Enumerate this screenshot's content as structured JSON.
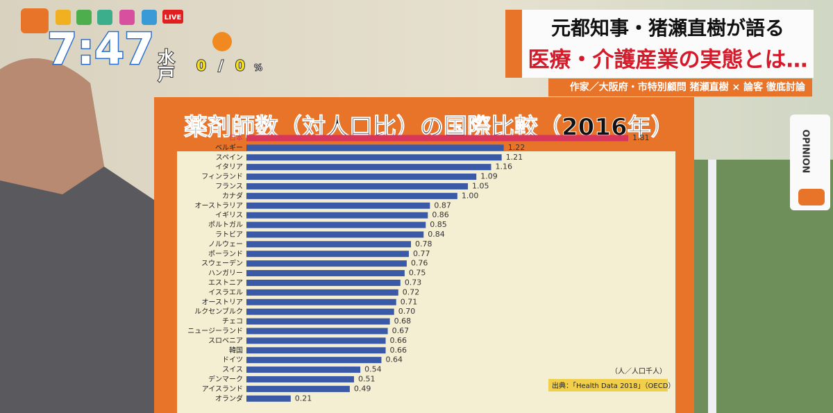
{
  "chart_data": {
    "type": "barh",
    "title": "薬剤師数（対人口比）の国際比較（2016年）",
    "unit_note": "（人／人口千人）",
    "source": "出典：「Health Data 2018」（OECD）",
    "categories": [
      "日本",
      "ベルギー",
      "スペイン",
      "イタリア",
      "フィンランド",
      "フランス",
      "カナダ",
      "オーストラリア",
      "イギリス",
      "ポルトガル",
      "ラトビア",
      "ノルウェー",
      "ポーランド",
      "スウェーデン",
      "ハンガリー",
      "エストニア",
      "イスラエル",
      "オーストリア",
      "ルクセンブルク",
      "チェコ",
      "ニュージーランド",
      "スロベニア",
      "韓国",
      "ドイツ",
      "スイス",
      "デンマーク",
      "アイスランド",
      "オランダ"
    ],
    "values": [
      1.81,
      1.22,
      1.21,
      1.16,
      1.09,
      1.05,
      1.0,
      0.87,
      0.86,
      0.85,
      0.84,
      0.78,
      0.77,
      0.76,
      0.75,
      0.73,
      0.72,
      0.71,
      0.7,
      0.68,
      0.67,
      0.66,
      0.66,
      0.64,
      0.54,
      0.51,
      0.49,
      0.21
    ],
    "value_labels": [
      "1.81",
      "1.22",
      "1.21",
      "1.16",
      "1.09",
      "1.05",
      "1.00",
      "0.87",
      "0.86",
      "0.85",
      "0.84",
      "0.78",
      "0.77",
      "0.76",
      "0.75",
      "0.73",
      "0.72",
      "0.71",
      "0.70",
      "0.68",
      "0.67",
      "0.66",
      "0.66",
      "0.64",
      "0.54",
      "0.51",
      "0.49",
      "0.21"
    ],
    "color": "#3a5aa8",
    "highlight_color": "#d8365a",
    "highlight": "日本"
  },
  "overlay": {
    "clock": "7:47",
    "city": "水戸",
    "rain_1": "0",
    "rain_sep": "/",
    "rain_2": "0",
    "rain_unit": "%",
    "live": "LIVE",
    "headline_1": "元都知事・猪瀬直樹が語る",
    "headline_2": "医療・介護産業の実態とは…",
    "subline": "作家／大阪府・市特別顧問 猪瀬直樹 × 論客 徹底討論",
    "tab": "OPINION"
  }
}
